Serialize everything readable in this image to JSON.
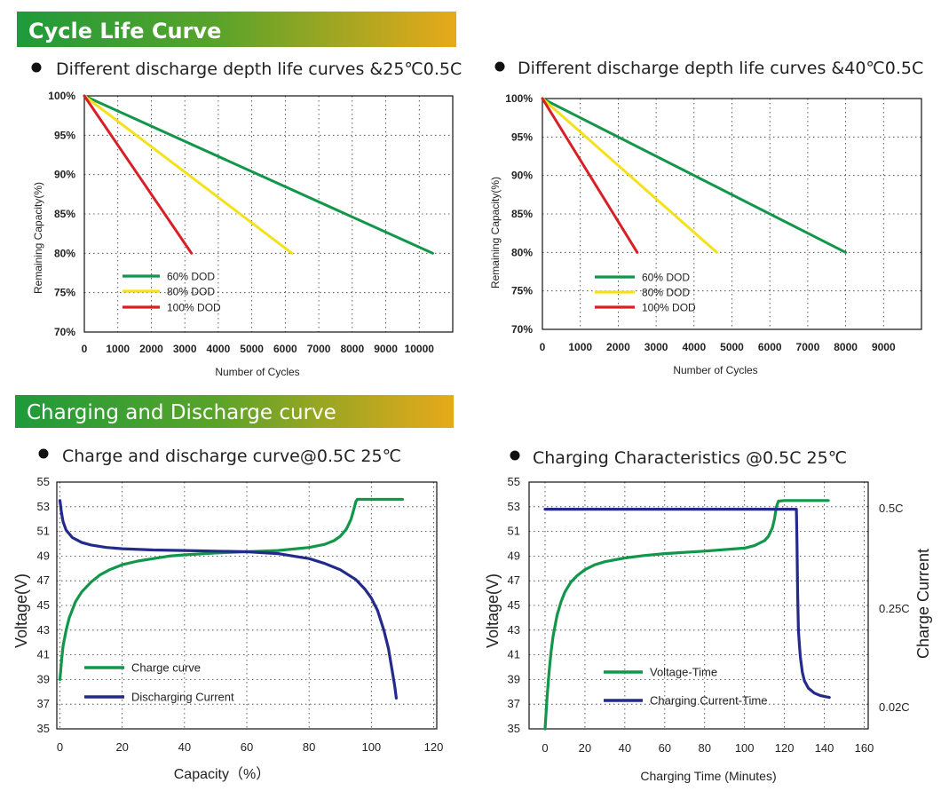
{
  "sections": {
    "cycle_life": "Cycle Life Curve",
    "charging": "Charging and Discharge curve"
  },
  "colors": {
    "banner_start": "#1f9a3a",
    "banner_end": "#e8a91a",
    "green": "#12964a",
    "yellow": "#f4e11c",
    "red": "#d81f26",
    "navy": "#232a8a"
  },
  "chart_data": [
    {
      "id": "life25",
      "type": "line",
      "title": "Different discharge depth life curves &25℃0.5C",
      "xlabel": "Number of Cycles",
      "ylabel": "Remaining Capacity(%)",
      "xlim": [
        0,
        11000
      ],
      "ylim": [
        70,
        100
      ],
      "x_ticks": [
        0,
        1000,
        2000,
        3000,
        4000,
        5000,
        6000,
        7000,
        8000,
        9000,
        10000
      ],
      "x_tick_labels": [
        "0",
        "1000",
        "2000",
        "3000",
        "4000",
        "5000",
        "6000",
        "7000",
        "8000",
        "9000",
        "10000"
      ],
      "y_ticks": [
        70,
        75,
        80,
        85,
        90,
        95,
        100
      ],
      "y_tick_labels": [
        "70%",
        "75%",
        "80%",
        "85%",
        "90%",
        "95%",
        "100%"
      ],
      "grid": true,
      "legend_position": "bottom-left",
      "series": [
        {
          "name": "60% DOD",
          "color": "#12964a",
          "x": [
            0,
            10400
          ],
          "y": [
            100,
            80
          ]
        },
        {
          "name": "80% DOD",
          "color": "#f4e11c",
          "x": [
            0,
            6200
          ],
          "y": [
            100,
            80
          ]
        },
        {
          "name": "100% DOD",
          "color": "#d81f26",
          "x": [
            0,
            3200
          ],
          "y": [
            100,
            80
          ]
        }
      ]
    },
    {
      "id": "life40",
      "type": "line",
      "title": "Different discharge depth life curves &40℃0.5C",
      "xlabel": "Number of Cycles",
      "ylabel": "Remaining Capacity(%)",
      "xlim": [
        0,
        10000
      ],
      "ylim": [
        70,
        100
      ],
      "x_ticks": [
        0,
        1000,
        2000,
        3000,
        4000,
        5000,
        6000,
        7000,
        8000,
        9000
      ],
      "x_tick_labels": [
        "0",
        "1000",
        "2000",
        "3000",
        "4000",
        "5000",
        "6000",
        "7000",
        "8000",
        "9000"
      ],
      "y_ticks": [
        70,
        75,
        80,
        85,
        90,
        95,
        100
      ],
      "y_tick_labels": [
        "70%",
        "75%",
        "80%",
        "85%",
        "90%",
        "95%",
        "100%"
      ],
      "grid": true,
      "legend_position": "bottom-left",
      "series": [
        {
          "name": "60% DOD",
          "color": "#12964a",
          "x": [
            0,
            8000
          ],
          "y": [
            100,
            80
          ]
        },
        {
          "name": "80% DOD",
          "color": "#f4e11c",
          "x": [
            0,
            4600
          ],
          "y": [
            100,
            80
          ]
        },
        {
          "name": "100% DOD",
          "color": "#d81f26",
          "x": [
            0,
            2500
          ],
          "y": [
            100,
            80
          ]
        }
      ]
    },
    {
      "id": "chgdis",
      "type": "line",
      "title": "Charge and discharge curve@0.5C 25℃",
      "xlabel": "Capacity（%）",
      "ylabel": "Voltage(V)",
      "xlim": [
        -1,
        121
      ],
      "ylim": [
        35,
        55
      ],
      "x_ticks": [
        0,
        20,
        40,
        60,
        80,
        100,
        120
      ],
      "x_tick_labels": [
        "0",
        "20",
        "40",
        "60",
        "80",
        "100",
        "120"
      ],
      "y_ticks": [
        35,
        37,
        39,
        41,
        43,
        45,
        47,
        49,
        51,
        53,
        55
      ],
      "y_tick_labels": [
        "35",
        "37",
        "39",
        "41",
        "43",
        "45",
        "47",
        "49",
        "51",
        "53",
        "55"
      ],
      "grid": true,
      "legend_position": "bottom-left",
      "series": [
        {
          "name": "Charge curve",
          "color": "#12964a",
          "x": [
            0,
            0.5,
            1,
            2,
            3,
            5,
            7,
            10,
            13,
            16,
            20,
            25,
            30,
            35,
            40,
            50,
            60,
            70,
            80,
            85,
            88,
            90,
            92,
            93.5,
            94.5,
            95,
            95.5,
            97,
            100,
            110
          ],
          "y": [
            39.0,
            40.5,
            41.7,
            43.0,
            44.0,
            45.3,
            46.1,
            46.9,
            47.5,
            47.9,
            48.3,
            48.6,
            48.8,
            49.0,
            49.1,
            49.25,
            49.35,
            49.45,
            49.7,
            49.95,
            50.25,
            50.6,
            51.2,
            52.0,
            52.9,
            53.4,
            53.6,
            53.6,
            53.6,
            53.6
          ]
        },
        {
          "name": "Discharging Current",
          "color": "#232a8a",
          "x": [
            0,
            0.5,
            1,
            2,
            4,
            7,
            10,
            15,
            20,
            30,
            40,
            50,
            60,
            70,
            75,
            80,
            85,
            90,
            95,
            98,
            100,
            102,
            104,
            105.5,
            106.5,
            107.5,
            108
          ],
          "y": [
            53.5,
            52.5,
            51.8,
            51.1,
            50.5,
            50.1,
            49.9,
            49.7,
            49.6,
            49.5,
            49.45,
            49.4,
            49.35,
            49.2,
            49.0,
            48.8,
            48.4,
            47.9,
            47.1,
            46.3,
            45.6,
            44.6,
            43.0,
            41.5,
            40.0,
            38.5,
            37.5
          ]
        }
      ]
    },
    {
      "id": "chgchar",
      "type": "line",
      "title": "Charging Characteristics @0.5C 25℃",
      "xlabel": "Charging Time (Minutes)",
      "ylabel": "Voltage(V)",
      "y2label": "Charge Current",
      "xlim": [
        -8,
        162
      ],
      "ylim": [
        35,
        55
      ],
      "x_ticks": [
        0,
        20,
        40,
        60,
        80,
        100,
        120,
        140,
        160
      ],
      "x_tick_labels": [
        "0",
        "20",
        "40",
        "60",
        "80",
        "100",
        "120",
        "140",
        "160"
      ],
      "y_ticks": [
        35,
        37,
        39,
        41,
        43,
        45,
        47,
        49,
        51,
        53,
        55
      ],
      "y_tick_labels": [
        "35",
        "37",
        "39",
        "41",
        "43",
        "45",
        "47",
        "49",
        "51",
        "53",
        "55"
      ],
      "y2_tick_labels": [
        {
          "label": "0.5C",
          "y": 52.9
        },
        {
          "label": "0.25C",
          "y": 44.8
        },
        {
          "label": "0.02C",
          "y": 36.8
        }
      ],
      "grid": true,
      "legend_position": "bottom-left",
      "series": [
        {
          "name": "Voltage-Time",
          "color": "#12964a",
          "x": [
            0,
            1,
            2,
            3,
            4,
            6,
            8,
            10,
            13,
            16,
            20,
            25,
            30,
            40,
            50,
            60,
            80,
            100,
            105,
            110,
            112,
            114,
            115,
            116,
            117,
            120,
            130,
            140,
            142
          ],
          "y": [
            35.0,
            37.5,
            39.6,
            41.2,
            42.5,
            44.2,
            45.3,
            46.1,
            46.9,
            47.4,
            47.9,
            48.3,
            48.55,
            48.85,
            49.05,
            49.2,
            49.4,
            49.65,
            49.85,
            50.25,
            50.6,
            51.3,
            52.0,
            53.0,
            53.45,
            53.5,
            53.5,
            53.5,
            53.5
          ]
        },
        {
          "name": "Charging Current-Time",
          "color": "#232a8a",
          "x": [
            0,
            50,
            100,
            126,
            126.3,
            126.6,
            127,
            127.5,
            128,
            129,
            130,
            132,
            135,
            138,
            141,
            142.5
          ],
          "y": [
            52.8,
            52.8,
            52.8,
            52.8,
            50.0,
            46.0,
            43.0,
            41.8,
            40.8,
            39.6,
            38.9,
            38.3,
            37.9,
            37.7,
            37.6,
            37.55
          ]
        }
      ]
    }
  ]
}
